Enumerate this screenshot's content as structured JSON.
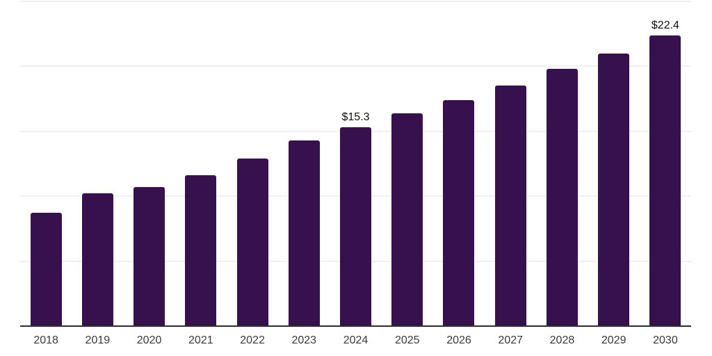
{
  "chart_data": {
    "type": "bar",
    "title": "",
    "xlabel": "",
    "ylabel": "",
    "categories": [
      "2018",
      "2019",
      "2020",
      "2021",
      "2022",
      "2023",
      "2024",
      "2025",
      "2026",
      "2027",
      "2028",
      "2029",
      "2030"
    ],
    "values": [
      8.7,
      10.2,
      10.7,
      11.6,
      12.9,
      14.3,
      15.3,
      16.4,
      17.4,
      18.5,
      19.8,
      21.0,
      22.4
    ],
    "data_labels": {
      "2024": "$15.3",
      "2030": "$22.4"
    },
    "ylim": [
      0,
      25
    ],
    "gridline_values": [
      5,
      10,
      15,
      20,
      25
    ],
    "grid": "horizontal-only",
    "legend": "none",
    "y_axis_labels": "none",
    "colors": {
      "bar": "#36114d",
      "gridline": "#f0f0f0",
      "axis_line": "#2d2d2d",
      "tick_label": "#3a3a3a",
      "data_label": "#101010",
      "background": "#ffffff"
    }
  }
}
